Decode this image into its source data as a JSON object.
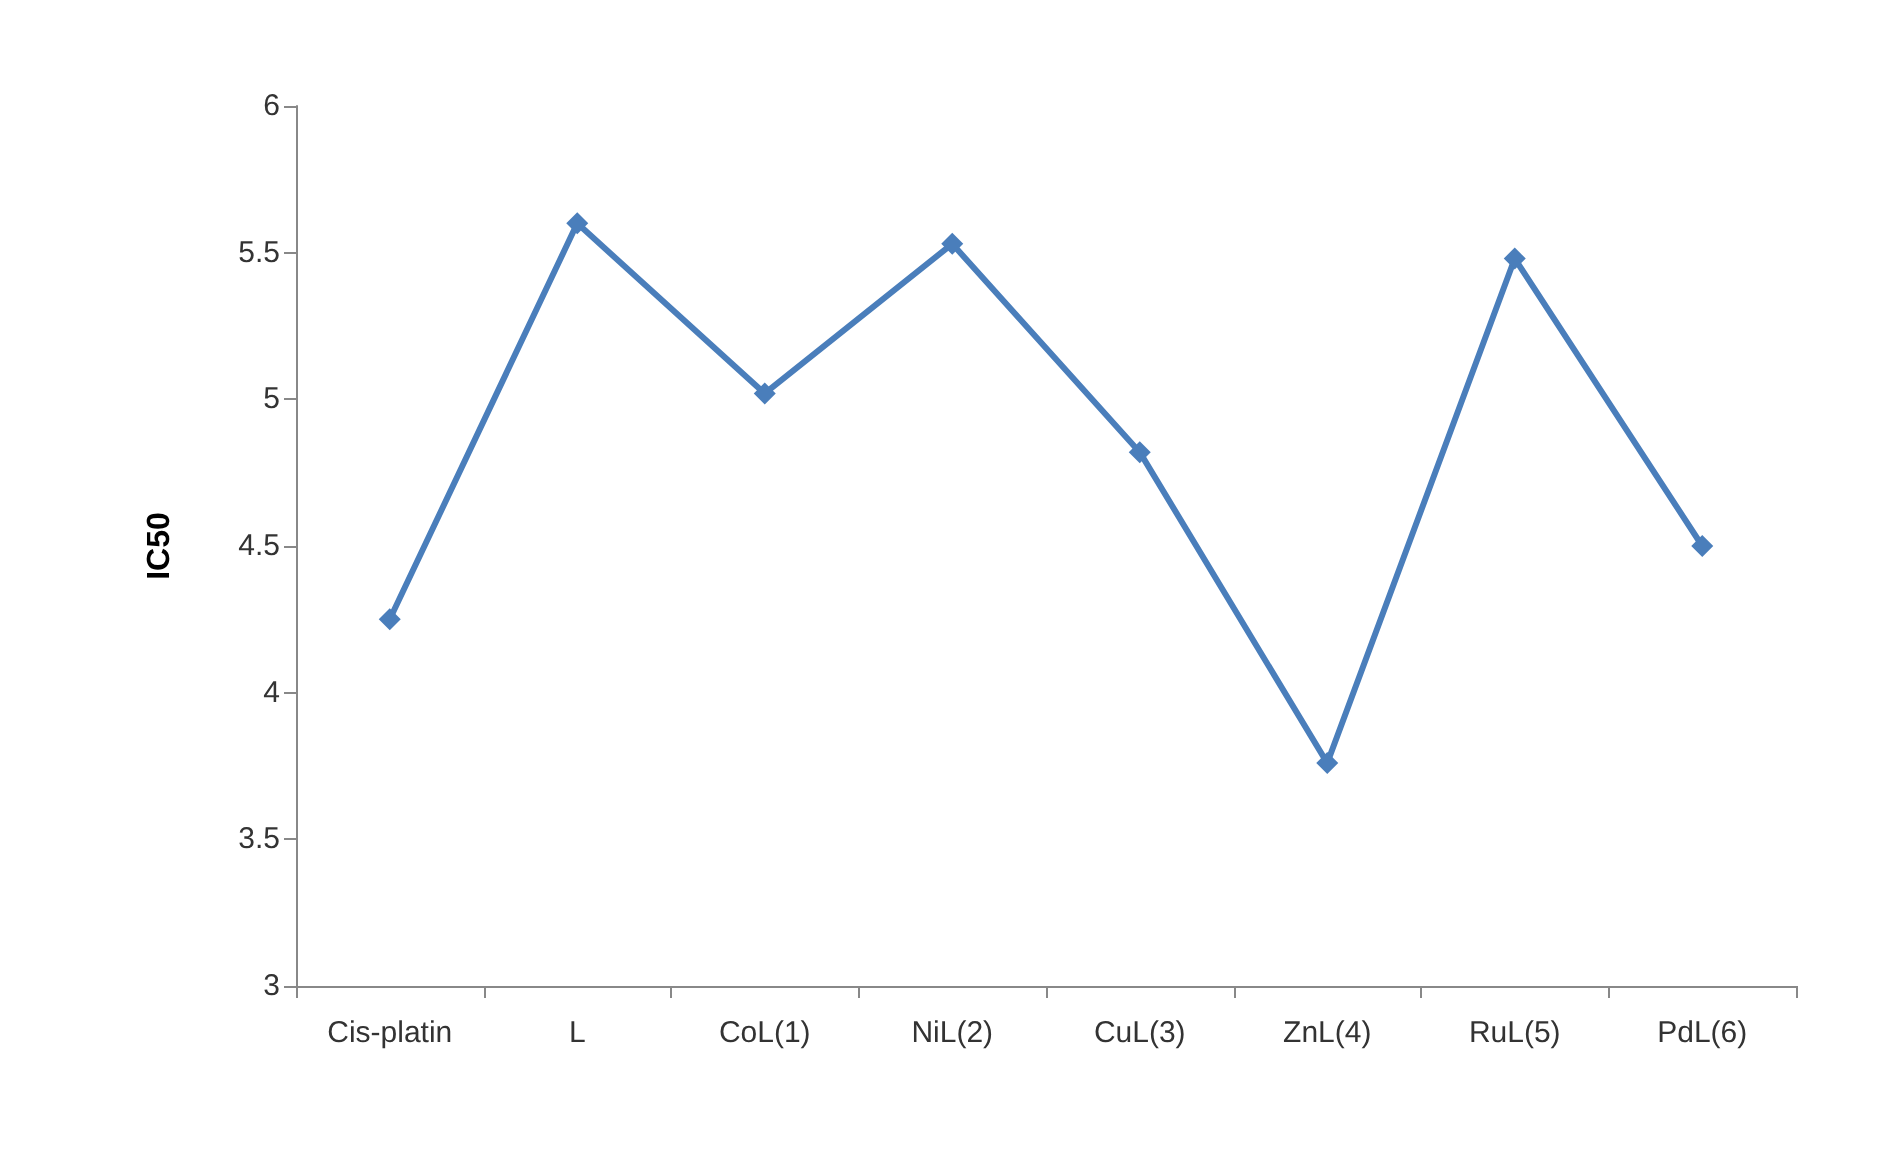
{
  "chart_data": {
    "type": "line",
    "ylabel": "IC50",
    "categories": [
      "Cis-platin",
      "L",
      "CoL(1)",
      "NiL(2)",
      "CuL(3)",
      "ZnL(4)",
      "RuL(5)",
      "PdL(6)"
    ],
    "series": [
      {
        "color": "#4a7ebb",
        "values": [
          4.25,
          5.6,
          5.02,
          5.53,
          4.82,
          3.76,
          5.48,
          4.5
        ]
      }
    ],
    "ylim": [
      3,
      6
    ],
    "yticks": [
      3,
      3.5,
      4,
      4.5,
      5,
      5.5,
      6
    ],
    "grid": false,
    "marker": "diamond",
    "line_style": "solid"
  }
}
